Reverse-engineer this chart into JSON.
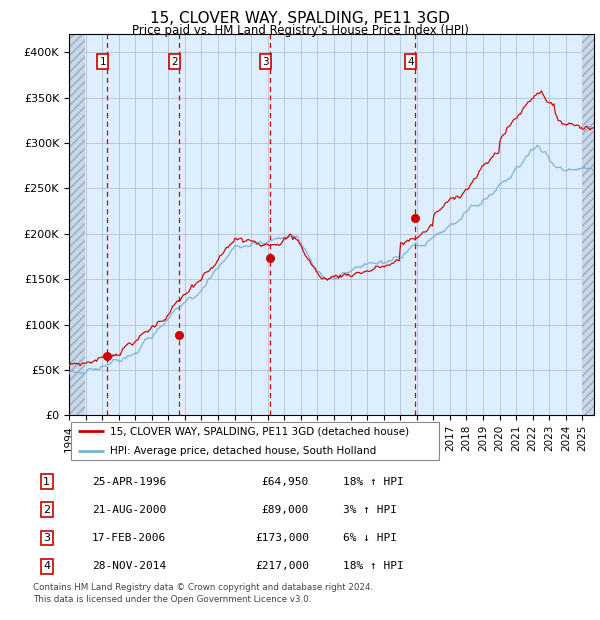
{
  "title": "15, CLOVER WAY, SPALDING, PE11 3GD",
  "subtitle": "Price paid vs. HM Land Registry's House Price Index (HPI)",
  "legend_line1": "15, CLOVER WAY, SPALDING, PE11 3GD (detached house)",
  "legend_line2": "HPI: Average price, detached house, South Holland",
  "footer1": "Contains HM Land Registry data © Crown copyright and database right 2024.",
  "footer2": "This data is licensed under the Open Government Licence v3.0.",
  "sales": [
    {
      "num": 1,
      "date_label": "25-APR-1996",
      "price": 64950,
      "pct": "18%",
      "dir": "↑",
      "year_x": 1996.32
    },
    {
      "num": 2,
      "date_label": "21-AUG-2000",
      "price": 89000,
      "pct": "3%",
      "dir": "↑",
      "year_x": 2000.63
    },
    {
      "num": 3,
      "date_label": "17-FEB-2006",
      "price": 173000,
      "pct": "6%",
      "dir": "↓",
      "year_x": 2006.13
    },
    {
      "num": 4,
      "date_label": "28-NOV-2014",
      "price": 217000,
      "pct": "18%",
      "dir": "↑",
      "year_x": 2014.91
    }
  ],
  "hpi_color": "#7bafd4",
  "price_color": "#cc0000",
  "dot_color": "#cc0000",
  "vline_color": "#cc0000",
  "plot_bg": "#ddeeff",
  "ylim": [
    0,
    420000
  ],
  "xlim_start": 1994.0,
  "xlim_end": 2025.7,
  "yticks": [
    0,
    50000,
    100000,
    150000,
    200000,
    250000,
    300000,
    350000,
    400000
  ],
  "ytick_labels": [
    "£0",
    "£50K",
    "£100K",
    "£150K",
    "£200K",
    "£250K",
    "£300K",
    "£350K",
    "£400K"
  ],
  "xticks": [
    1994,
    1995,
    1996,
    1997,
    1998,
    1999,
    2000,
    2001,
    2002,
    2003,
    2004,
    2005,
    2006,
    2007,
    2008,
    2009,
    2010,
    2011,
    2012,
    2013,
    2014,
    2015,
    2016,
    2017,
    2018,
    2019,
    2020,
    2021,
    2022,
    2023,
    2024,
    2025
  ]
}
